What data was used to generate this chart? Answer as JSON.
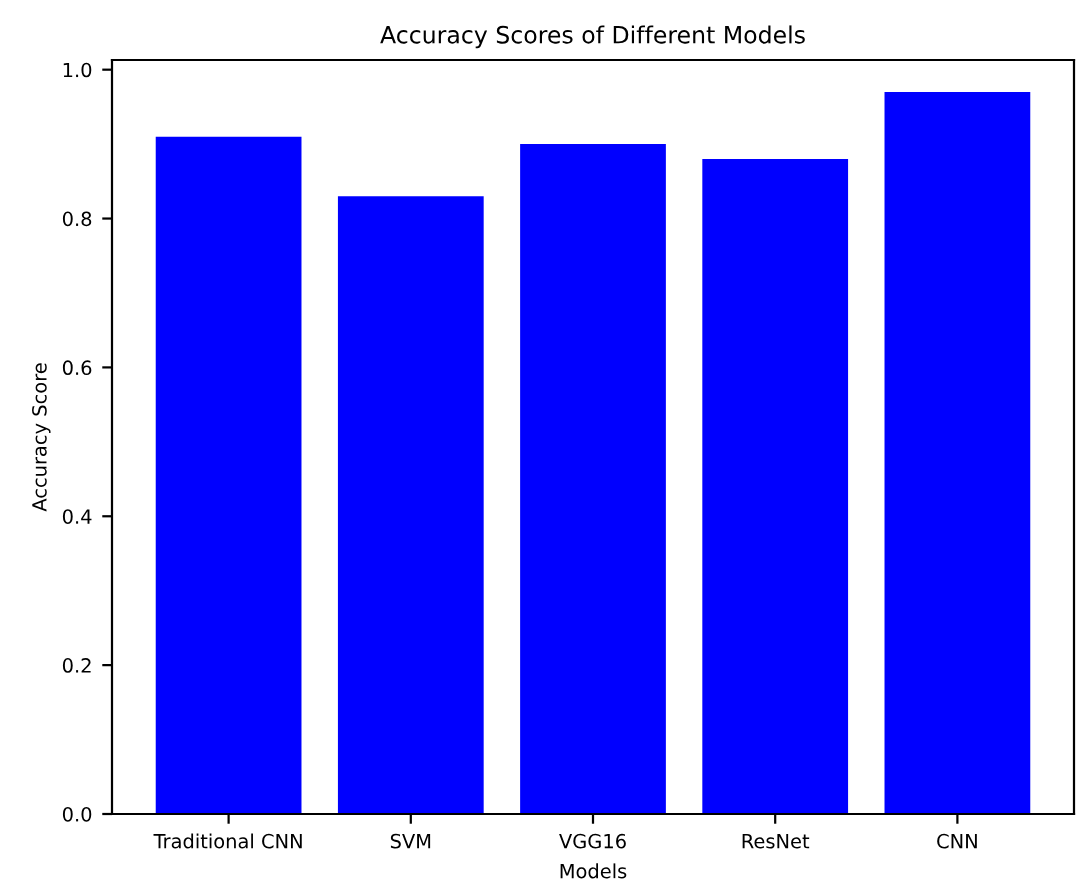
{
  "chart_data": {
    "type": "bar",
    "title": "Accuracy Scores of Different Models",
    "xlabel": "Models",
    "ylabel": "Accuracy Score",
    "categories": [
      "Traditional CNN",
      "SVM",
      "VGG16",
      "ResNet",
      "CNN"
    ],
    "values": [
      0.91,
      0.83,
      0.9,
      0.88,
      0.97
    ],
    "color": "#0000ff",
    "ylim": [
      0,
      1.013
    ],
    "yticks": [
      {
        "value": 0,
        "label": "0.0"
      },
      0.2,
      0.4,
      0.6,
      0.8,
      {
        "value": 1,
        "label": "1.0"
      }
    ],
    "grid": false
  }
}
